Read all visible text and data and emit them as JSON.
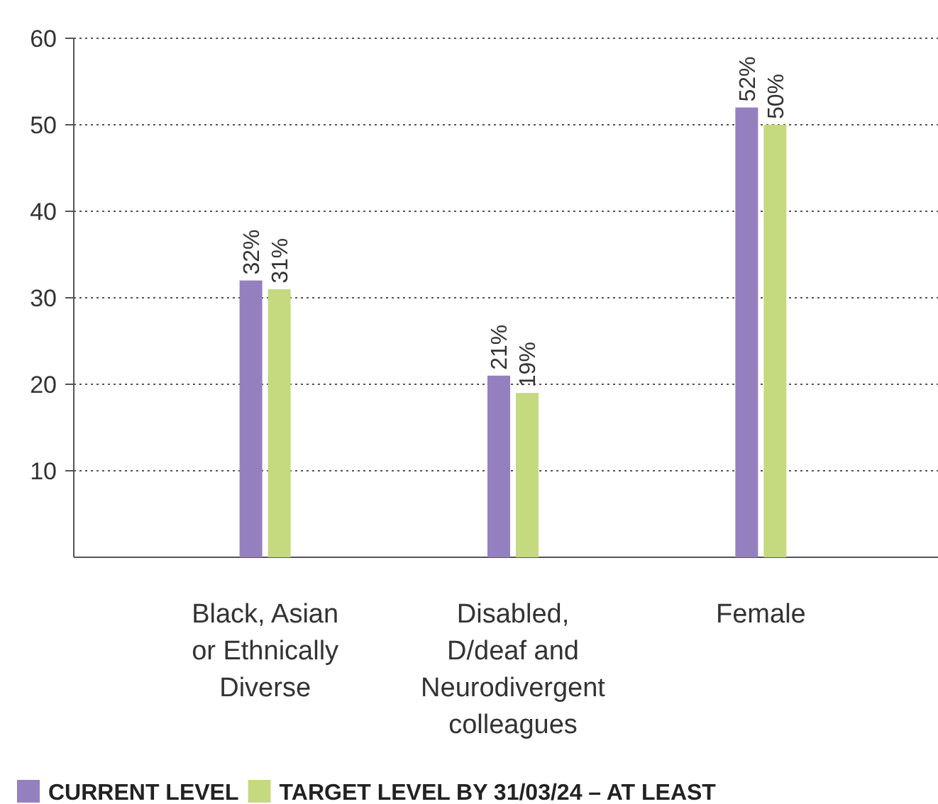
{
  "chart_data": {
    "type": "bar",
    "categories": [
      "Black, Asian or Ethnically Diverse",
      "Disabled, D/deaf and Neurodivergent colleagues",
      "Female"
    ],
    "series": [
      {
        "name": "CURRENT LEVEL",
        "color": "#9580bf",
        "values": [
          32,
          21,
          52
        ],
        "value_labels": [
          "32%",
          "21%",
          "52%"
        ]
      },
      {
        "name": "TARGET LEVEL BY 31/03/24 – AT LEAST",
        "color": "#c5d97f",
        "values": [
          31,
          19,
          50
        ],
        "value_labels": [
          "31%",
          "19%",
          "50%"
        ]
      }
    ],
    "ylim": [
      0,
      60
    ],
    "yticks": [
      10,
      20,
      30,
      40,
      50,
      60
    ],
    "grid": "y",
    "legend": "bottom"
  }
}
